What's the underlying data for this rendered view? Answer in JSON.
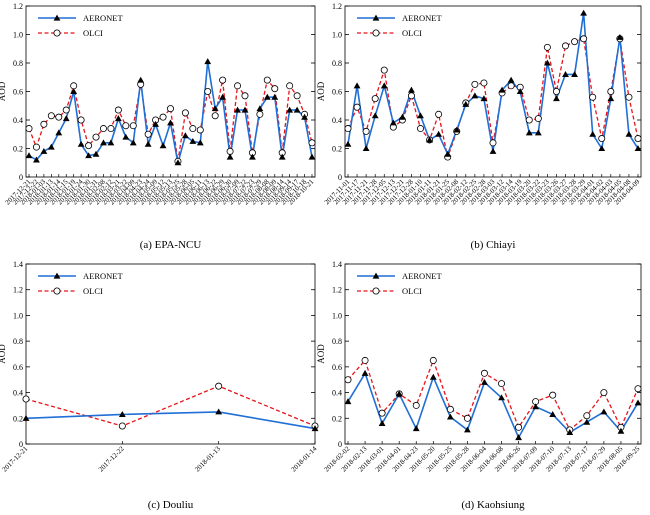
{
  "figure": {
    "legend_labels": [
      "AERONET",
      "OLCI"
    ],
    "colors": {
      "aeronet": "#1f6fd6",
      "olci": "#e8141a"
    }
  },
  "chart_data": [
    {
      "type": "line",
      "caption": "(a) EPA-NCU",
      "ylabel": "AOD",
      "ylim": [
        0,
        1.2
      ],
      "yticks": [
        0,
        0.2,
        0.4,
        0.6,
        0.8,
        1.0,
        1.2
      ],
      "legend": "top-left",
      "categories": [
        "2017-12-21",
        "2017-12-22",
        "2018-01-03",
        "2018-01-13",
        "2018-01-14",
        "2018-01-15",
        "2018-01-19",
        "2018-01-24",
        "2018-01-30",
        "2018-01-31",
        "2018-02-08",
        "2018-02-12",
        "2018-03-21",
        "2018-03-22",
        "2018-04-09",
        "2018-04-23",
        "2018-04-24",
        "2018-05-09",
        "2018-05-12",
        "2018-05-13",
        "2018-05-25",
        "2018-05-28",
        "2018-06-05",
        "2018-06-11",
        "2018-06-13",
        "2018-06-22",
        "2018-06-29",
        "2018-06-30",
        "2018-07-09",
        "2018-07-22",
        "2018-07-23",
        "2018-07-29",
        "2018-08-08",
        "2018-08-09",
        "2018-08-14",
        "2018-09-14",
        "2018-09-17",
        "2018-10-18",
        "2018-10-21"
      ],
      "series": [
        {
          "name": "AERONET",
          "values": [
            0.15,
            0.12,
            0.18,
            0.21,
            0.31,
            0.41,
            0.6,
            0.23,
            0.15,
            0.16,
            0.24,
            0.24,
            0.41,
            0.28,
            0.24,
            0.68,
            0.23,
            0.37,
            0.22,
            0.38,
            0.1,
            0.29,
            0.25,
            0.24,
            0.81,
            0.48,
            0.56,
            0.14,
            0.47,
            0.47,
            0.14,
            0.48,
            0.56,
            0.56,
            0.14,
            0.47,
            0.47,
            0.42,
            0.14
          ]
        },
        {
          "name": "OLCI",
          "values": [
            0.34,
            0.21,
            0.37,
            0.43,
            0.42,
            0.47,
            0.64,
            0.4,
            0.22,
            0.28,
            0.34,
            0.34,
            0.47,
            0.36,
            0.36,
            0.65,
            0.3,
            0.4,
            0.42,
            0.48,
            0.11,
            0.45,
            0.34,
            0.33,
            0.6,
            0.43,
            0.68,
            0.18,
            0.64,
            0.57,
            0.17,
            0.44,
            0.68,
            0.62,
            0.17,
            0.64,
            0.57,
            0.44,
            0.24
          ]
        }
      ]
    },
    {
      "type": "line",
      "caption": "(b) Chiayi",
      "ylabel": "AOD",
      "ylim": [
        0,
        1.2
      ],
      "yticks": [
        0,
        0.2,
        0.4,
        0.6,
        0.8,
        1.0,
        1.2
      ],
      "legend": "top-left",
      "categories": [
        "2017-11-01",
        "2017-11-17",
        "2017-11-21",
        "2017-11-28",
        "2017-12-05",
        "2017-12-13",
        "2017-12-21",
        "2017-12-28",
        "2018-01-10",
        "2018-01-11",
        "2018-01-21",
        "2018-01-25",
        "2018-02-08",
        "2018-02-12",
        "2018-02-25",
        "2018-02-28",
        "2018-03-03",
        "2018-03-12",
        "2018-03-14",
        "2018-03-19",
        "2018-03-20",
        "2018-03-22",
        "2018-03-23",
        "2018-03-26",
        "2018-03-27",
        "2018-03-28",
        "2018-03-29",
        "2018-04-01",
        "2018-04-02",
        "2018-04-03",
        "2018-04-05",
        "2018-04-08",
        "2018-04-09"
      ],
      "series": [
        {
          "name": "AERONET",
          "values": [
            0.23,
            0.64,
            0.2,
            0.43,
            0.64,
            0.38,
            0.42,
            0.61,
            0.43,
            0.26,
            0.3,
            0.16,
            0.33,
            0.51,
            0.57,
            0.55,
            0.18,
            0.61,
            0.68,
            0.6,
            0.31,
            0.31,
            0.8,
            0.55,
            0.72,
            0.72,
            1.15,
            0.3,
            0.2,
            0.55,
            0.98,
            0.3,
            0.2
          ]
        },
        {
          "name": "OLCI",
          "values": [
            0.34,
            0.49,
            0.32,
            0.55,
            0.75,
            0.35,
            0.4,
            0.57,
            0.34,
            0.26,
            0.44,
            0.14,
            0.32,
            0.52,
            0.65,
            0.66,
            0.24,
            0.59,
            0.64,
            0.63,
            0.4,
            0.41,
            0.91,
            0.6,
            0.92,
            0.95,
            0.97,
            0.56,
            0.27,
            0.6,
            0.97,
            0.56,
            0.27
          ]
        }
      ]
    },
    {
      "type": "line",
      "caption": "(c) Douliu",
      "ylabel": "AOD",
      "ylim": [
        0,
        1.4
      ],
      "yticks": [
        0,
        0.2,
        0.4,
        0.6,
        0.8,
        1.0,
        1.2,
        1.4
      ],
      "legend": "top-left",
      "categories": [
        "2017-12-21",
        "2017-12-22",
        "2018-01-13",
        "2018-01-14"
      ],
      "series": [
        {
          "name": "AERONET",
          "values": [
            0.2,
            0.23,
            0.25,
            0.12
          ]
        },
        {
          "name": "OLCI",
          "values": [
            0.35,
            0.14,
            0.45,
            0.14
          ]
        }
      ]
    },
    {
      "type": "line",
      "caption": "(d) Kaohsiung",
      "ylabel": "AOD",
      "ylim": [
        0,
        1.4
      ],
      "yticks": [
        0,
        0.2,
        0.4,
        0.6,
        0.8,
        1.0,
        1.2,
        1.4
      ],
      "legend": "top-left",
      "categories": [
        "2018-02-02",
        "2018-02-13",
        "2018-03-01",
        "2018-04-01",
        "2018-04-23",
        "2018-05-20",
        "2018-05-25",
        "2018-05-28",
        "2018-06-04",
        "2018-06-08",
        "2018-06-26",
        "2018-07-09",
        "2018-07-10",
        "2018-07-13",
        "2018-07-17",
        "2018-07-29",
        "2018-08-05",
        "2018-09-25"
      ],
      "series": [
        {
          "name": "AERONET",
          "values": [
            0.33,
            0.55,
            0.16,
            0.39,
            0.12,
            0.52,
            0.21,
            0.11,
            0.48,
            0.36,
            0.05,
            0.29,
            0.23,
            0.09,
            0.17,
            0.25,
            0.1,
            0.32
          ]
        },
        {
          "name": "OLCI",
          "values": [
            0.5,
            0.65,
            0.24,
            0.39,
            0.3,
            0.65,
            0.27,
            0.2,
            0.55,
            0.47,
            0.13,
            0.33,
            0.38,
            0.11,
            0.22,
            0.4,
            0.13,
            0.43
          ]
        }
      ]
    }
  ]
}
